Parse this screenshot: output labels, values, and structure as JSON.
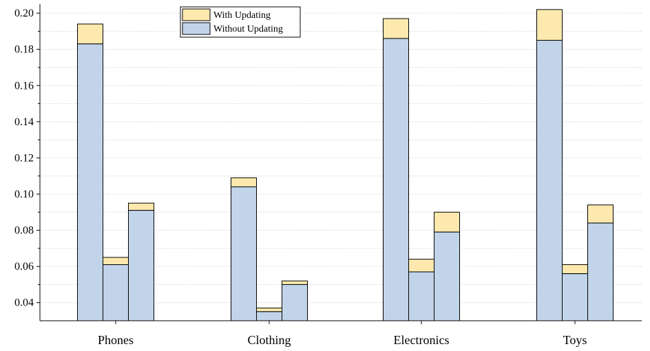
{
  "chart_data": {
    "type": "bar",
    "stacked": true,
    "categories": [
      "Phones",
      "Clothing",
      "Electronics",
      "Toys"
    ],
    "bars_per_category": 3,
    "series": [
      {
        "name": "Without Updating",
        "color": "#c1d4ea",
        "values": [
          [
            0.183,
            0.061,
            0.091
          ],
          [
            0.104,
            0.035,
            0.05
          ],
          [
            0.186,
            0.057,
            0.079
          ],
          [
            0.185,
            0.056,
            0.084
          ]
        ]
      },
      {
        "name": "With Updating",
        "color": "#fde9ae",
        "values": [
          [
            0.194,
            0.065,
            0.095
          ],
          [
            0.109,
            0.037,
            0.052
          ],
          [
            0.197,
            0.064,
            0.09
          ],
          [
            0.202,
            0.061,
            0.094
          ]
        ]
      }
    ],
    "ylim": [
      0.03,
      0.205
    ],
    "yticks": [
      "0.04",
      "0.06",
      "0.08",
      "0.10",
      "0.12",
      "0.14",
      "0.16",
      "0.18",
      "0.20"
    ],
    "grid": true,
    "legend": {
      "placement": "top-left",
      "entries": [
        "With Updating",
        "Without Updating"
      ]
    }
  }
}
